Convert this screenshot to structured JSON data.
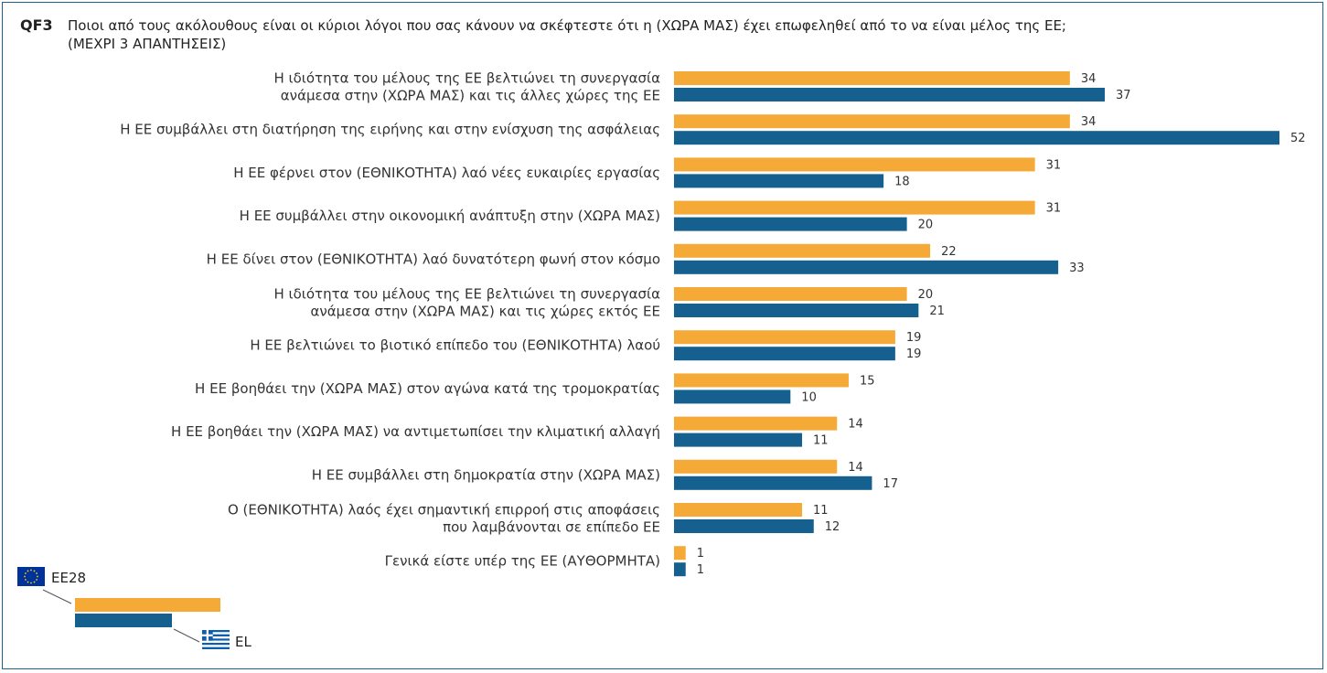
{
  "header": {
    "qid": "QF3",
    "question_line1": "Ποιοι από τους ακόλουθους είναι οι κύριοι λόγοι που σας κάνουν να σκέφτεστε ότι η (ΧΩΡΑ ΜΑΣ) έχει επωφεληθεί από το να είναι μέλος της ΕΕ;",
    "question_line2": "(ΜΕΧΡΙ 3 ΑΠΑΝΤΗΣΕΙΣ)"
  },
  "legend": {
    "eu_label": "ΕΕ28",
    "el_label": "EL"
  },
  "colors": {
    "eu": "#f5a937",
    "el": "#15608f"
  },
  "chart_data": {
    "type": "bar",
    "orientation": "horizontal",
    "categories": [
      [
        "Η ιδιότητα του μέλους της ΕΕ βελτιώνει τη συνεργασία",
        "ανάμεσα στην (ΧΩΡΑ ΜΑΣ) και τις άλλες χώρες της ΕΕ"
      ],
      [
        "Η ΕΕ συμβάλλει στη διατήρηση της ειρήνης και στην ενίσχυση της ασφάλειας"
      ],
      [
        "Η ΕΕ φέρνει στον (ΕΘΝΙΚΟΤΗΤΑ) λαό νέες ευκαιρίες εργασίας"
      ],
      [
        "Η ΕΕ συμβάλλει στην οικονομική ανάπτυξη στην (ΧΩΡΑ ΜΑΣ)"
      ],
      [
        "Η ΕΕ δίνει στον (ΕΘΝΙΚΟΤΗΤΑ) λαό δυνατότερη φωνή στον κόσμο"
      ],
      [
        "Η ιδιότητα του μέλους της ΕΕ βελτιώνει τη συνεργασία",
        "ανάμεσα στην (ΧΩΡΑ ΜΑΣ) και τις χώρες εκτός ΕΕ"
      ],
      [
        "Η ΕΕ βελτιώνει το βιοτικό επίπεδο του (ΕΘΝΙΚΟΤΗΤΑ) λαού"
      ],
      [
        "Η ΕΕ βοηθάει την (ΧΩΡΑ ΜΑΣ) στον αγώνα κατά της τρομοκρατίας"
      ],
      [
        "Η ΕΕ βοηθάει την (ΧΩΡΑ ΜΑΣ) να αντιμετωπίσει την κλιματική αλλαγή"
      ],
      [
        "Η ΕΕ συμβάλλει στη δημοκρατία στην (ΧΩΡΑ ΜΑΣ)"
      ],
      [
        "Ο (ΕΘΝΙΚΟΤΗΤΑ) λαός έχει σημαντική επιρροή στις αποφάσεις",
        "που λαμβάνονται σε επίπεδο ΕΕ"
      ],
      [
        "Γενικά είστε υπέρ της ΕΕ (ΑΥΘΟΡΜΗΤΑ)"
      ]
    ],
    "series": [
      {
        "name": "ΕΕ28",
        "values": [
          34,
          34,
          31,
          31,
          22,
          20,
          19,
          15,
          14,
          14,
          11,
          1
        ]
      },
      {
        "name": "EL",
        "values": [
          37,
          52,
          18,
          20,
          33,
          21,
          19,
          10,
          11,
          17,
          12,
          1
        ]
      }
    ],
    "xlim": [
      0,
      52
    ],
    "unit": "%"
  }
}
